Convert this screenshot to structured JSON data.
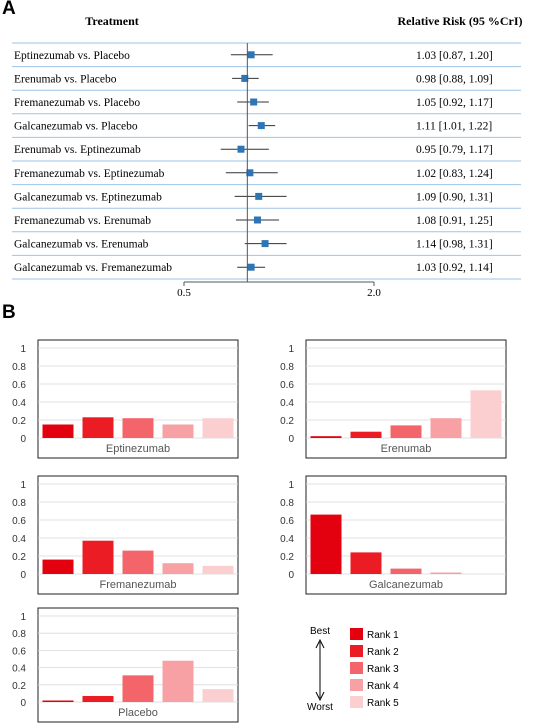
{
  "panels": {
    "a": "A",
    "b": "B"
  },
  "chart_data": [
    {
      "type": "forest",
      "header_left": "Treatment",
      "header_right": "Relative Risk (95 %CrI)",
      "x_ticks": [
        "0.5",
        "2.0"
      ],
      "rows": [
        {
          "label": "Eptinezumab vs. Placebo",
          "est": 1.03,
          "lo": 0.87,
          "hi": 1.2,
          "text": "1.03 [0.87, 1.20]"
        },
        {
          "label": "Erenumab vs. Placebo",
          "est": 0.98,
          "lo": 0.88,
          "hi": 1.09,
          "text": "0.98 [0.88, 1.09]"
        },
        {
          "label": "Fremanezumab vs. Placebo",
          "est": 1.05,
          "lo": 0.92,
          "hi": 1.17,
          "text": "1.05 [0.92, 1.17]"
        },
        {
          "label": "Galcanezumab vs. Placebo",
          "est": 1.11,
          "lo": 1.01,
          "hi": 1.22,
          "text": "1.11 [1.01, 1.22]"
        },
        {
          "label": "Erenumab vs. Eptinezumab",
          "est": 0.95,
          "lo": 0.79,
          "hi": 1.17,
          "text": "0.95 [0.79, 1.17]"
        },
        {
          "label": "Fremanezumab vs. Eptinezumab",
          "est": 1.02,
          "lo": 0.83,
          "hi": 1.24,
          "text": "1.02 [0.83, 1.24]"
        },
        {
          "label": "Galcanezumab vs. Eptinezumab",
          "est": 1.09,
          "lo": 0.9,
          "hi": 1.31,
          "text": "1.09 [0.90, 1.31]"
        },
        {
          "label": "Fremanezumab vs. Erenumab",
          "est": 1.08,
          "lo": 0.91,
          "hi": 1.25,
          "text": "1.08 [0.91, 1.25]"
        },
        {
          "label": "Galcanezumab vs. Erenumab",
          "est": 1.14,
          "lo": 0.98,
          "hi": 1.31,
          "text": "1.14 [0.98, 1.31]"
        },
        {
          "label": "Galcanezumab vs. Fremanezumab",
          "est": 1.03,
          "lo": 0.92,
          "hi": 1.14,
          "text": "1.03 [0.92, 1.14]"
        }
      ],
      "colors": {
        "marker": "#2e75b6",
        "grid": "#9dc3e6"
      }
    },
    {
      "type": "bar",
      "categories": [
        "Rank 1",
        "Rank 2",
        "Rank 3",
        "Rank 4",
        "Rank 5"
      ],
      "ylim": [
        0,
        1
      ],
      "yticks": [
        "0",
        "0.2",
        "0.4",
        "0.6",
        "0.8",
        "1"
      ],
      "colors": [
        "#e3000f",
        "#ec1c24",
        "#f4656b",
        "#f7a1a4",
        "#fbcfd0"
      ],
      "series": [
        {
          "name": "Eptinezumab",
          "values": [
            0.15,
            0.23,
            0.22,
            0.15,
            0.22
          ]
        },
        {
          "name": "Erenumab",
          "values": [
            0.02,
            0.07,
            0.14,
            0.22,
            0.53
          ]
        },
        {
          "name": "Fremanezumab",
          "values": [
            0.16,
            0.37,
            0.26,
            0.12,
            0.09
          ]
        },
        {
          "name": "Galcanezumab",
          "values": [
            0.66,
            0.24,
            0.06,
            0.01,
            0.0
          ]
        },
        {
          "name": "Placebo",
          "values": [
            0.01,
            0.07,
            0.31,
            0.48,
            0.15
          ]
        }
      ],
      "legend": {
        "best": "Best",
        "worst": "Worst",
        "labels": [
          "Rank 1",
          "Rank 2",
          "Rank 3",
          "Rank 4",
          "Rank 5"
        ]
      }
    }
  ]
}
